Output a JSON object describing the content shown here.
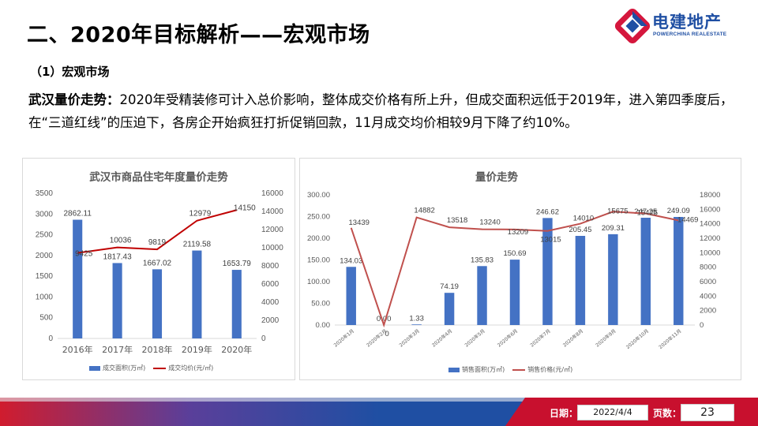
{
  "header": {
    "title": "二、2020年目标解析——宏观市场",
    "logo": {
      "cn": "电建地产",
      "en": "POWERCHINA REALESTATE"
    }
  },
  "section": {
    "subheading": "（1）宏观市场",
    "lead_bold": "武汉量价走势：",
    "lead_text": "2020年受精装修可计入总价影响，整体成交价格有所上升，但成交面积远低于2019年，进入第四季度后，在“三道红线”的压迫下，各房企开始疯狂打折促销回款，11月成交均价相较9月下降了约10%。"
  },
  "chart_data": [
    {
      "type": "bar",
      "title": "武汉市商品住宅年度量价走势",
      "categories": [
        "2016年",
        "2017年",
        "2018年",
        "2019年",
        "2020年"
      ],
      "series": [
        {
          "name": "成交面积(万㎡)",
          "kind": "bar",
          "axis": "left",
          "color": "#4472c4",
          "values": [
            2862.11,
            1817.43,
            1667.02,
            2119.58,
            1653.79
          ]
        },
        {
          "name": "成交均价(元/㎡)",
          "kind": "line",
          "axis": "right",
          "color": "#c00000",
          "values": [
            9425,
            10036,
            9819,
            12979,
            14150
          ]
        }
      ],
      "ylim_left": [
        0,
        3500
      ],
      "yticks_left": [
        "0",
        "500",
        "1000",
        "1500",
        "2000",
        "2500",
        "3000",
        "3500"
      ],
      "ylim_right": [
        0,
        16000
      ],
      "yticks_right": [
        "0",
        "2000",
        "4000",
        "6000",
        "8000",
        "10000",
        "12000",
        "14000",
        "16000"
      ],
      "grid": false,
      "legend_position": "bottom"
    },
    {
      "type": "bar",
      "title": "量价走势",
      "categories": [
        "2020年1月",
        "2020年2月",
        "2020年3月",
        "2020年4月",
        "2020年5月",
        "2020年6月",
        "2020年7月",
        "2020年8月",
        "2020年9月",
        "2020年10月",
        "2020年11月"
      ],
      "series": [
        {
          "name": "销售面积(万㎡)",
          "kind": "bar",
          "axis": "left",
          "color": "#4472c4",
          "values": [
            134.03,
            0.0,
            1.33,
            74.19,
            135.83,
            150.69,
            246.62,
            205.45,
            209.31,
            247.25,
            249.09
          ]
        },
        {
          "name": "销售价格(元/㎡)",
          "kind": "line",
          "axis": "right",
          "color": "#c0504d",
          "values": [
            13439,
            0,
            14882,
            13518,
            13240,
            13209,
            13015,
            14010,
            15675,
            15425,
            14469
          ]
        }
      ],
      "ylim_left": [
        0,
        300
      ],
      "yticks_left": [
        "0.00",
        "50.00",
        "100.00",
        "150.00",
        "200.00",
        "250.00",
        "300.00"
      ],
      "ylim_right": [
        0,
        18000
      ],
      "yticks_right": [
        "0",
        "2000",
        "4000",
        "6000",
        "8000",
        "10000",
        "12000",
        "14000",
        "16000",
        "18000"
      ],
      "grid": false,
      "legend_position": "bottom"
    }
  ],
  "footer": {
    "date_label": "日期：",
    "date": "2022/4/4",
    "page_label": "页数：",
    "page": "23"
  }
}
